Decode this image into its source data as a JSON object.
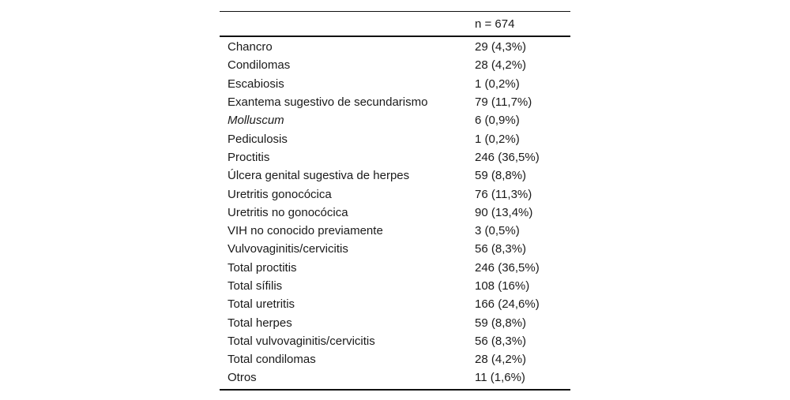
{
  "table": {
    "header": {
      "label": "",
      "value": "n = 674"
    },
    "rows": [
      {
        "label": "Chancro",
        "value": "29 (4,3%)"
      },
      {
        "label": "Condilomas",
        "value": "28 (4,2%)"
      },
      {
        "label": "Escabiosis",
        "value": "1 (0,2%)"
      },
      {
        "label": "Exantema sugestivo de secundarismo",
        "value": "79 (11,7%)"
      },
      {
        "label": "Molluscum",
        "value": "6 (0,9%)"
      },
      {
        "label": "Pediculosis",
        "value": "1 (0,2%)"
      },
      {
        "label": "Proctitis",
        "value": "246 (36,5%)"
      },
      {
        "label": "Úlcera genital sugestiva de herpes",
        "value": "59 (8,8%)"
      },
      {
        "label": "Uretritis gonocócica",
        "value": "76 (11,3%)"
      },
      {
        "label": "Uretritis no gonocócica",
        "value": "90 (13,4%)"
      },
      {
        "label": "VIH no conocido previamente",
        "value": "3 (0,5%)"
      },
      {
        "label": "Vulvovaginitis/cervicitis",
        "value": "56 (8,3%)"
      },
      {
        "label": "Total proctitis",
        "value": "246 (36,5%)"
      },
      {
        "label": "Total sífilis",
        "value": "108 (16%)"
      },
      {
        "label": "Total uretritis",
        "value": "166 (24,6%)"
      },
      {
        "label": "Total herpes",
        "value": "59 (8,8%)"
      },
      {
        "label": "Total vulvovaginitis/cervicitis",
        "value": "56 (8,3%)"
      },
      {
        "label": "Total condilomas",
        "value": "28 (4,2%)"
      },
      {
        "label": "Otros",
        "value": "11 (1,6%)"
      }
    ]
  },
  "chart_data": {
    "type": "table",
    "title": "",
    "columns": [
      "",
      "n = 674"
    ],
    "categories": [
      "Chancro",
      "Condilomas",
      "Escabiosis",
      "Exantema sugestivo de secundarismo",
      "Molluscum",
      "Pediculosis",
      "Proctitis",
      "Úlcera genital sugestiva de herpes",
      "Uretritis gonocócica",
      "Uretritis no gonocócica",
      "VIH no conocido previamente",
      "Vulvovaginitis/cervicitis",
      "Total proctitis",
      "Total sífilis",
      "Total uretritis",
      "Total herpes",
      "Total vulvovaginitis/cervicitis",
      "Total condilomas",
      "Otros"
    ],
    "counts": [
      29,
      28,
      1,
      79,
      6,
      1,
      246,
      59,
      76,
      90,
      3,
      56,
      246,
      108,
      166,
      59,
      56,
      28,
      11
    ],
    "percents": [
      "4,3%",
      "4,2%",
      "0,2%",
      "11,7%",
      "0,9%",
      "0,2%",
      "36,5%",
      "8,8%",
      "11,3%",
      "13,4%",
      "0,5%",
      "8,3%",
      "36,5%",
      "16%",
      "24,6%",
      "8,8%",
      "8,3%",
      "4,2%",
      "1,6%"
    ],
    "n_total": 674
  }
}
